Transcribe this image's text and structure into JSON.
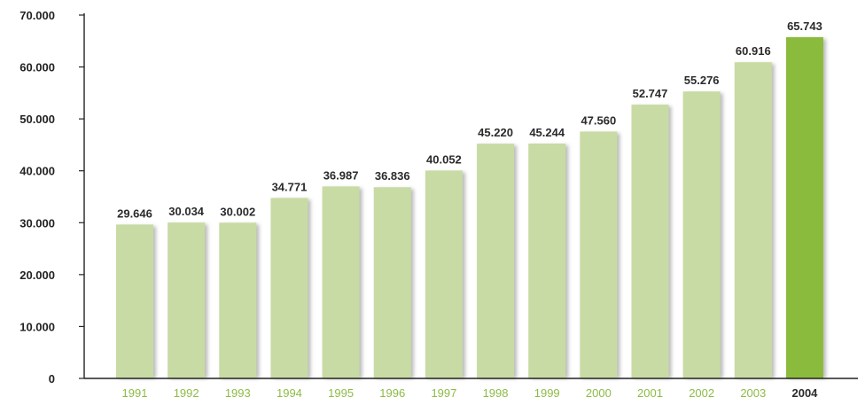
{
  "chart_data": {
    "type": "bar",
    "categories": [
      "1991",
      "1992",
      "1993",
      "1994",
      "1995",
      "1996",
      "1997",
      "1998",
      "1999",
      "2000",
      "2001",
      "2002",
      "2003",
      "2004"
    ],
    "values": [
      29646,
      30034,
      30002,
      34771,
      36987,
      36836,
      40052,
      45220,
      45244,
      47560,
      52747,
      55276,
      60916,
      65743
    ],
    "value_labels": [
      "29.646",
      "30.034",
      "30.002",
      "34.771",
      "36.987",
      "36.836",
      "40.052",
      "45.220",
      "45.244",
      "47.560",
      "52.747",
      "55.276",
      "60.916",
      "65.743"
    ],
    "y_ticks": [
      "0",
      "10.000",
      "20.000",
      "30.000",
      "40.000",
      "50.000",
      "60.000",
      "70.000"
    ],
    "ylim": [
      0,
      70000
    ],
    "highlight_index": 13,
    "grid": false,
    "colors": {
      "bar": "#c8dba4",
      "highlight_bar": "#8bbb3c",
      "shadow": "#b9b9b9",
      "x_label": "#8dbb45",
      "x_label_highlight": "#2b2b2b",
      "axis": "#222222"
    },
    "title": "",
    "xlabel": "",
    "ylabel": ""
  }
}
